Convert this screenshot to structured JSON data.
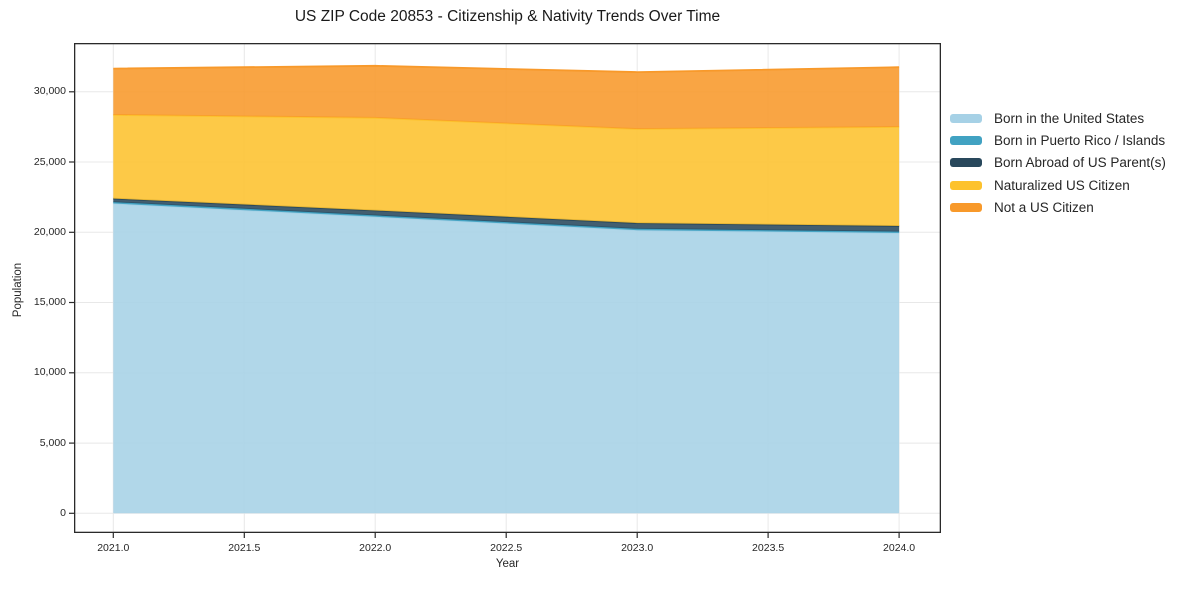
{
  "chart_data": {
    "type": "area",
    "stacked": true,
    "title": "US ZIP Code 20853 - Citizenship & Nativity Trends Over Time",
    "xlabel": "Year",
    "ylabel": "Population",
    "x": [
      2021,
      2022,
      2023,
      2024
    ],
    "series": [
      {
        "name": "Born in the United States",
        "color": "#a6d1e6",
        "values": [
          22050,
          21100,
          20150,
          19950
        ]
      },
      {
        "name": "Born in Puerto Rico / Islands",
        "color": "#41a2c2",
        "values": [
          100,
          100,
          100,
          100
        ]
      },
      {
        "name": "Born Abroad of US Parent(s)",
        "color": "#29485c",
        "values": [
          250,
          350,
          400,
          400
        ]
      },
      {
        "name": "Naturalized US Citizen",
        "color": "#fdc22d",
        "values": [
          5950,
          6600,
          6700,
          7050
        ]
      },
      {
        "name": "Not a US Citizen",
        "color": "#f8992a",
        "values": [
          3300,
          3700,
          4050,
          4250
        ]
      }
    ],
    "totals": [
      31650,
      31850,
      31400,
      31750
    ],
    "x_ticks": {
      "values": [
        2021.0,
        2021.5,
        2022.0,
        2022.5,
        2023.0,
        2023.5,
        2024.0
      ],
      "labels": [
        "2021.0",
        "2021.5",
        "2022.0",
        "2022.5",
        "2023.0",
        "2023.5",
        "2024.0"
      ]
    },
    "y_ticks": {
      "values": [
        0,
        5000,
        10000,
        15000,
        20000,
        25000,
        30000
      ],
      "labels": [
        "0",
        "5,000",
        "10,000",
        "15,000",
        "20,000",
        "25,000",
        "30,000"
      ]
    },
    "x_range": [
      2020.85,
      2024.16
    ],
    "y_range": [
      -1400,
      33470
    ],
    "grid": true,
    "legend_position": "right",
    "fill_opacity": 0.88,
    "colors": {
      "background": "#ffffff",
      "grid": "#e8e8e8",
      "axis": "#2a2a2a",
      "text": "#262626"
    }
  }
}
